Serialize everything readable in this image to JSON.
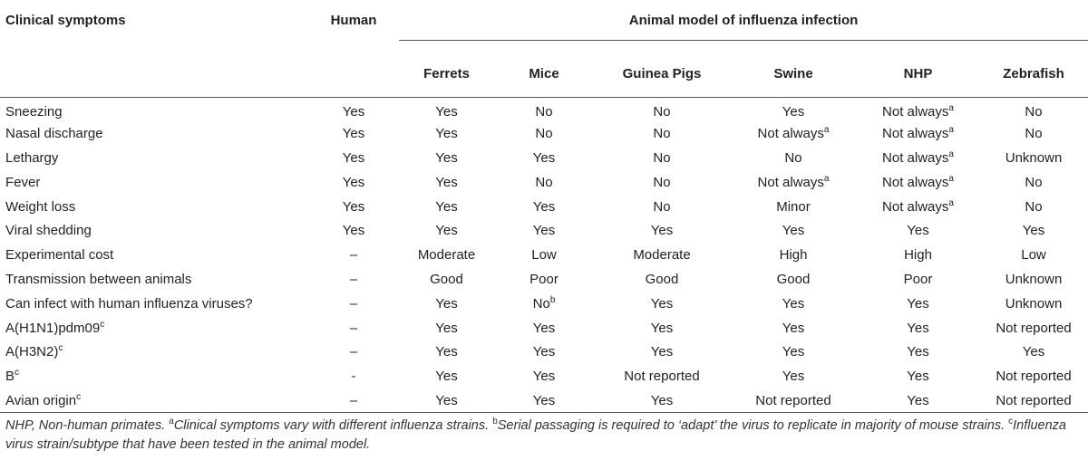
{
  "header": {
    "clinical_symptoms": "Clinical symptoms",
    "human": "Human",
    "group": "Animal model of influenza infection",
    "animals": [
      "Ferrets",
      "Mice",
      "Guinea Pigs",
      "Swine",
      "NHP",
      "Zebrafish"
    ]
  },
  "rows": [
    {
      "label": "Sneezing",
      "label_sup": "",
      "cells": [
        {
          "v": "Yes",
          "s": ""
        },
        {
          "v": "Yes",
          "s": ""
        },
        {
          "v": "No",
          "s": ""
        },
        {
          "v": "No",
          "s": ""
        },
        {
          "v": "Yes",
          "s": ""
        },
        {
          "v": "Not always",
          "s": "a"
        },
        {
          "v": "No",
          "s": ""
        }
      ]
    },
    {
      "label": "Nasal discharge",
      "label_sup": "",
      "cells": [
        {
          "v": "Yes",
          "s": ""
        },
        {
          "v": "Yes",
          "s": ""
        },
        {
          "v": "No",
          "s": ""
        },
        {
          "v": "No",
          "s": ""
        },
        {
          "v": "Not always",
          "s": "a"
        },
        {
          "v": "Not always",
          "s": "a"
        },
        {
          "v": "No",
          "s": ""
        }
      ]
    },
    {
      "label": "Lethargy",
      "label_sup": "",
      "cells": [
        {
          "v": "Yes",
          "s": ""
        },
        {
          "v": "Yes",
          "s": ""
        },
        {
          "v": "Yes",
          "s": ""
        },
        {
          "v": "No",
          "s": ""
        },
        {
          "v": "No",
          "s": ""
        },
        {
          "v": "Not always",
          "s": "a"
        },
        {
          "v": "Unknown",
          "s": ""
        }
      ]
    },
    {
      "label": "Fever",
      "label_sup": "",
      "cells": [
        {
          "v": "Yes",
          "s": ""
        },
        {
          "v": "Yes",
          "s": ""
        },
        {
          "v": "No",
          "s": ""
        },
        {
          "v": "No",
          "s": ""
        },
        {
          "v": "Not always",
          "s": "a"
        },
        {
          "v": "Not always",
          "s": "a"
        },
        {
          "v": "No",
          "s": ""
        }
      ]
    },
    {
      "label": "Weight loss",
      "label_sup": "",
      "cells": [
        {
          "v": "Yes",
          "s": ""
        },
        {
          "v": "Yes",
          "s": ""
        },
        {
          "v": "Yes",
          "s": ""
        },
        {
          "v": "No",
          "s": ""
        },
        {
          "v": "Minor",
          "s": ""
        },
        {
          "v": "Not always",
          "s": "a"
        },
        {
          "v": "No",
          "s": ""
        }
      ]
    },
    {
      "label": "Viral shedding",
      "label_sup": "",
      "cells": [
        {
          "v": "Yes",
          "s": ""
        },
        {
          "v": "Yes",
          "s": ""
        },
        {
          "v": "Yes",
          "s": ""
        },
        {
          "v": "Yes",
          "s": ""
        },
        {
          "v": "Yes",
          "s": ""
        },
        {
          "v": "Yes",
          "s": ""
        },
        {
          "v": "Yes",
          "s": ""
        }
      ]
    },
    {
      "label": "Experimental cost",
      "label_sup": "",
      "cells": [
        {
          "v": "–",
          "s": ""
        },
        {
          "v": "Moderate",
          "s": ""
        },
        {
          "v": "Low",
          "s": ""
        },
        {
          "v": "Moderate",
          "s": ""
        },
        {
          "v": "High",
          "s": ""
        },
        {
          "v": "High",
          "s": ""
        },
        {
          "v": "Low",
          "s": ""
        }
      ]
    },
    {
      "label": "Transmission between animals",
      "label_sup": "",
      "cells": [
        {
          "v": "–",
          "s": ""
        },
        {
          "v": "Good",
          "s": ""
        },
        {
          "v": "Poor",
          "s": ""
        },
        {
          "v": "Good",
          "s": ""
        },
        {
          "v": "Good",
          "s": ""
        },
        {
          "v": "Poor",
          "s": ""
        },
        {
          "v": "Unknown",
          "s": ""
        }
      ]
    },
    {
      "label": "Can infect with human influenza viruses?",
      "label_sup": "",
      "cells": [
        {
          "v": "–",
          "s": ""
        },
        {
          "v": "Yes",
          "s": ""
        },
        {
          "v": "No",
          "s": "b"
        },
        {
          "v": "Yes",
          "s": ""
        },
        {
          "v": "Yes",
          "s": ""
        },
        {
          "v": "Yes",
          "s": ""
        },
        {
          "v": "Unknown",
          "s": ""
        }
      ]
    },
    {
      "label": "A(H1N1)pdm09",
      "label_sup": "c",
      "cells": [
        {
          "v": "–",
          "s": ""
        },
        {
          "v": "Yes",
          "s": ""
        },
        {
          "v": "Yes",
          "s": ""
        },
        {
          "v": "Yes",
          "s": ""
        },
        {
          "v": "Yes",
          "s": ""
        },
        {
          "v": "Yes",
          "s": ""
        },
        {
          "v": "Not reported",
          "s": ""
        }
      ]
    },
    {
      "label": "A(H3N2)",
      "label_sup": "c",
      "cells": [
        {
          "v": "–",
          "s": ""
        },
        {
          "v": "Yes",
          "s": ""
        },
        {
          "v": "Yes",
          "s": ""
        },
        {
          "v": "Yes",
          "s": ""
        },
        {
          "v": "Yes",
          "s": ""
        },
        {
          "v": "Yes",
          "s": ""
        },
        {
          "v": "Yes",
          "s": ""
        }
      ]
    },
    {
      "label": "B",
      "label_sup": "c",
      "cells": [
        {
          "v": "-",
          "s": ""
        },
        {
          "v": "Yes",
          "s": ""
        },
        {
          "v": "Yes",
          "s": ""
        },
        {
          "v": "Not reported",
          "s": ""
        },
        {
          "v": "Yes",
          "s": ""
        },
        {
          "v": "Yes",
          "s": ""
        },
        {
          "v": "Not reported",
          "s": ""
        }
      ]
    },
    {
      "label": "Avian origin",
      "label_sup": "c",
      "cells": [
        {
          "v": "–",
          "s": ""
        },
        {
          "v": "Yes",
          "s": ""
        },
        {
          "v": "Yes",
          "s": ""
        },
        {
          "v": "Yes",
          "s": ""
        },
        {
          "v": "Not reported",
          "s": ""
        },
        {
          "v": "Yes",
          "s": ""
        },
        {
          "v": "Not reported",
          "s": ""
        }
      ]
    }
  ],
  "footnote": {
    "abbrev": "NHP, Non-human primates. ",
    "a_mark": "a",
    "a_text": "Clinical symptoms vary with different influenza strains. ",
    "b_mark": "b",
    "b_text": "Serial passaging is required to ‘adapt’ the virus to replicate in majority of mouse strains. ",
    "c_mark": "c",
    "c_text": "Influenza virus strain/subtype that have been tested in the animal model."
  }
}
